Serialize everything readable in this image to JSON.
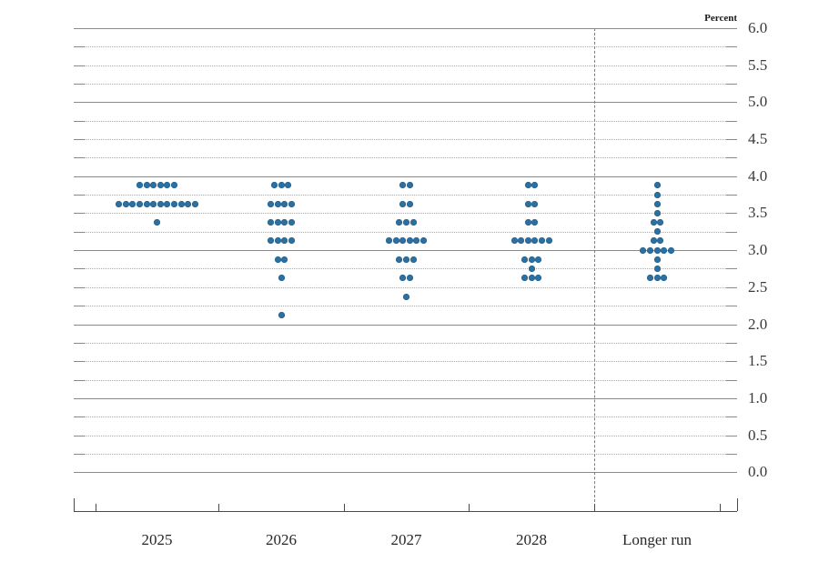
{
  "chart_data": {
    "type": "scatter",
    "subtype": "fomc-dot-plot",
    "ylabel": "Percent",
    "ylim": [
      0.0,
      6.0
    ],
    "grid": "solid lines at integers, dotted lines every 0.25",
    "legend_position": "none",
    "y_ticks": [
      {
        "v": 6.0,
        "label": "6.0"
      },
      {
        "v": 5.5,
        "label": "5.5"
      },
      {
        "v": 5.0,
        "label": "5.0"
      },
      {
        "v": 4.5,
        "label": "4.5"
      },
      {
        "v": 4.0,
        "label": "4.0"
      },
      {
        "v": 3.5,
        "label": "3.5"
      },
      {
        "v": 3.0,
        "label": "3.0"
      },
      {
        "v": 2.5,
        "label": "2.5"
      },
      {
        "v": 2.0,
        "label": "2.0"
      },
      {
        "v": 1.5,
        "label": "1.5"
      },
      {
        "v": 1.0,
        "label": "1.0"
      },
      {
        "v": 0.5,
        "label": "0.5"
      },
      {
        "v": 0.0,
        "label": "0.0"
      }
    ],
    "categories": [
      "2025",
      "2026",
      "2027",
      "2028",
      "Longer run"
    ],
    "separator_before_category_index": 4,
    "dot_color": "#2d6f9f",
    "series": [
      {
        "category": "2025",
        "dots": [
          {
            "rate": 3.875,
            "count": 6
          },
          {
            "rate": 3.625,
            "count": 12
          },
          {
            "rate": 3.375,
            "count": 1
          }
        ]
      },
      {
        "category": "2026",
        "dots": [
          {
            "rate": 3.875,
            "count": 3
          },
          {
            "rate": 3.625,
            "count": 4
          },
          {
            "rate": 3.375,
            "count": 4
          },
          {
            "rate": 3.125,
            "count": 4
          },
          {
            "rate": 2.875,
            "count": 2
          },
          {
            "rate": 2.625,
            "count": 1
          },
          {
            "rate": 2.125,
            "count": 1
          }
        ]
      },
      {
        "category": "2027",
        "dots": [
          {
            "rate": 3.875,
            "count": 2
          },
          {
            "rate": 3.625,
            "count": 2
          },
          {
            "rate": 3.375,
            "count": 3
          },
          {
            "rate": 3.125,
            "count": 6
          },
          {
            "rate": 2.875,
            "count": 3
          },
          {
            "rate": 2.625,
            "count": 2
          },
          {
            "rate": 2.375,
            "count": 1
          }
        ]
      },
      {
        "category": "2028",
        "dots": [
          {
            "rate": 3.875,
            "count": 2
          },
          {
            "rate": 3.625,
            "count": 2
          },
          {
            "rate": 3.375,
            "count": 2
          },
          {
            "rate": 3.125,
            "count": 6
          },
          {
            "rate": 2.875,
            "count": 3
          },
          {
            "rate": 2.75,
            "count": 1
          },
          {
            "rate": 2.625,
            "count": 3
          }
        ]
      },
      {
        "category": "Longer run",
        "dots": [
          {
            "rate": 3.875,
            "count": 1
          },
          {
            "rate": 3.75,
            "count": 1
          },
          {
            "rate": 3.625,
            "count": 1
          },
          {
            "rate": 3.5,
            "count": 1
          },
          {
            "rate": 3.375,
            "count": 2
          },
          {
            "rate": 3.25,
            "count": 1
          },
          {
            "rate": 3.125,
            "count": 2
          },
          {
            "rate": 3.0,
            "count": 5
          },
          {
            "rate": 2.875,
            "count": 1
          },
          {
            "rate": 2.75,
            "count": 1
          },
          {
            "rate": 2.625,
            "count": 3
          }
        ]
      }
    ]
  }
}
